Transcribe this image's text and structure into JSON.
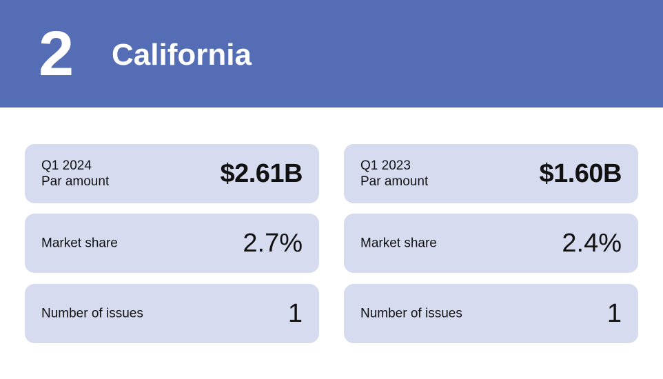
{
  "header": {
    "rank": "2",
    "state": "California",
    "background_color": "#556db5"
  },
  "columns": [
    {
      "period": "Q1 2024",
      "par_label": "Par amount",
      "par_amount": "$2.61B",
      "market_share_label": "Market share",
      "market_share": "2.7%",
      "issues_label": "Number of issues",
      "issues": "1"
    },
    {
      "period": "Q1 2023",
      "par_label": "Par amount",
      "par_amount": "$1.60B",
      "market_share_label": "Market share",
      "market_share": "2.4%",
      "issues_label": "Number of issues",
      "issues": "1"
    }
  ],
  "card_color": "#d6dbf0"
}
